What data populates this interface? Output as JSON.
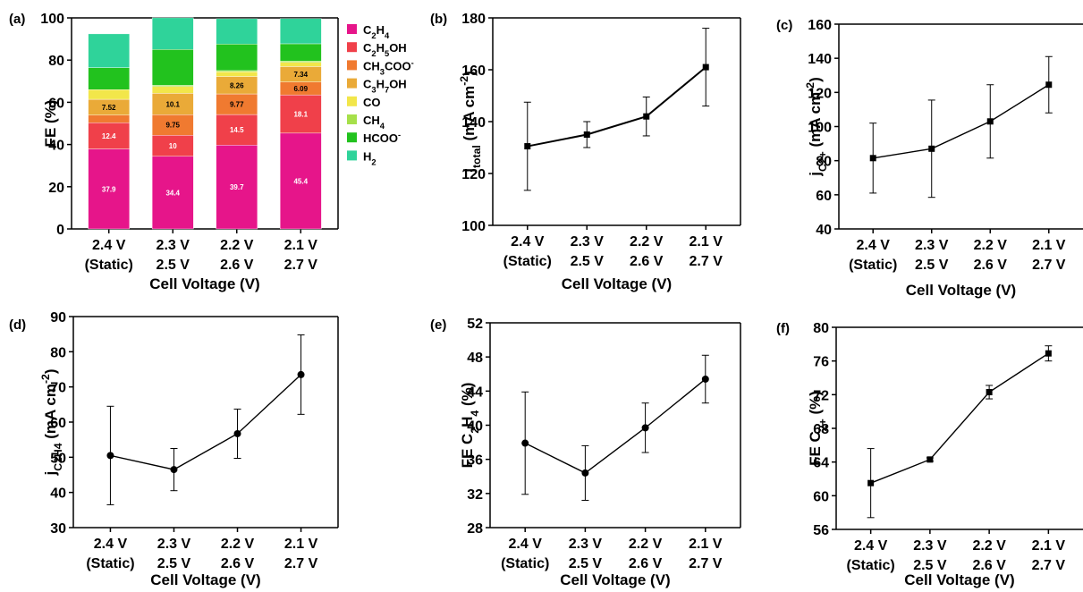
{
  "figure": {
    "categories_line1": [
      "2.4 V",
      "2.3 V",
      "2.2 V",
      "2.1 V"
    ],
    "categories_line2": [
      "(Static)",
      "2.5 V",
      "2.6 V",
      "2.7 V"
    ],
    "xlabel": "Cell Voltage (V)"
  },
  "chart_data": [
    {
      "id": "a",
      "panel_label": "(a)",
      "type": "bar",
      "stacked": true,
      "categories": [
        "2.4 V (Static)",
        "2.3 V 2.5 V",
        "2.2 V 2.6 V",
        "2.1 V 2.7 V"
      ],
      "ylabel": "FE (%)",
      "xlabel": "Cell Voltage (V)",
      "ylim": [
        0,
        100
      ],
      "yticks": [
        0,
        20,
        40,
        60,
        80,
        100
      ],
      "legend_position": "right",
      "series": [
        {
          "name": "C2H4",
          "name_main": "C",
          "name_sub": "2",
          "name_tail": "H",
          "name_sub2": "4",
          "color": "#e6158a",
          "values": [
            37.9,
            34.4,
            39.7,
            45.4
          ],
          "labels": [
            "37.9",
            "34.4",
            "39.7",
            "45.4"
          ],
          "label_color": "#ffffff"
        },
        {
          "name": "C2H5OH",
          "color": "#f0404a",
          "values": [
            12.4,
            10,
            14.5,
            18.1
          ],
          "labels": [
            "12.4",
            "10",
            "14.5",
            "18.1"
          ],
          "label_color": "#ffffff"
        },
        {
          "name": "CH3COO-",
          "color": "#f07a30",
          "values": [
            3.6,
            9.75,
            9.77,
            6.09
          ],
          "labels": [
            "",
            "9.75",
            "9.77",
            "6.09"
          ],
          "label_color": "#000000"
        },
        {
          "name": "C3H7OH",
          "color": "#eaaa38",
          "values": [
            7.52,
            10.1,
            8.26,
            7.34
          ],
          "labels": [
            "7.52",
            "10.1",
            "8.26",
            "7.34"
          ],
          "label_color": "#000000"
        },
        {
          "name": "CO",
          "color": "#f2e64a",
          "values": [
            4.6,
            3.2,
            2.2,
            2.0
          ],
          "labels": [
            "",
            "",
            "",
            ""
          ],
          "label_color": "#000000"
        },
        {
          "name": "CH4",
          "color": "#a6e04a",
          "values": [
            0,
            0.6,
            0.6,
            0.6
          ],
          "labels": [
            "",
            "",
            "",
            ""
          ],
          "label_color": "#000000"
        },
        {
          "name": "HCOO-",
          "color": "#22c21e",
          "values": [
            10.4,
            17.0,
            12.6,
            8.2
          ],
          "labels": [
            "",
            "",
            "",
            ""
          ],
          "label_color": "#000000"
        },
        {
          "name": "H2",
          "color": "#2fd39a",
          "values": [
            16.0,
            15.0,
            12.0,
            12.0
          ],
          "labels": [
            "",
            "",
            "",
            ""
          ],
          "label_color": "#000000"
        }
      ]
    },
    {
      "id": "b",
      "panel_label": "(b)",
      "type": "line",
      "marker": "square",
      "ylabel": "j_total (mA cm^-2)",
      "xlabel": "Cell Voltage (V)",
      "ylim": [
        100,
        180
      ],
      "yticks": [
        100,
        120,
        140,
        160,
        180
      ],
      "values": [
        130.5,
        135,
        142,
        161
      ],
      "errors": [
        17,
        5,
        7.5,
        15
      ]
    },
    {
      "id": "c",
      "panel_label": "(c)",
      "type": "line",
      "marker": "square",
      "ylabel": "j_C2+ (mA cm^-2)",
      "xlabel": "Cell Voltage (V)",
      "ylim": [
        40,
        160
      ],
      "yticks": [
        40,
        60,
        80,
        100,
        120,
        140,
        160
      ],
      "values": [
        81.5,
        87,
        103,
        124.5
      ],
      "errors": [
        20.5,
        28.5,
        21.5,
        16.5
      ]
    },
    {
      "id": "d",
      "panel_label": "(d)",
      "type": "line",
      "marker": "circle",
      "ylabel": "j_C2H4 (mA cm^-2)",
      "xlabel": "Cell Voltage (V)",
      "ylim": [
        30,
        90
      ],
      "yticks": [
        30,
        40,
        50,
        60,
        70,
        80,
        90
      ],
      "values": [
        50.5,
        46.5,
        56.7,
        73.5
      ],
      "errors": [
        14,
        6,
        7,
        11.3
      ]
    },
    {
      "id": "e",
      "panel_label": "(e)",
      "type": "line",
      "marker": "circle",
      "ylabel": "FE C2H4 (%)",
      "xlabel": "Cell Voltage (V)",
      "ylim": [
        28,
        52
      ],
      "yticks": [
        28,
        32,
        36,
        40,
        44,
        48,
        52
      ],
      "values": [
        37.9,
        34.4,
        39.7,
        45.4
      ],
      "errors": [
        6,
        3.2,
        2.9,
        2.8
      ]
    },
    {
      "id": "f",
      "panel_label": "(f)",
      "type": "line",
      "marker": "square",
      "ylabel": "FE C2+ (%)",
      "xlabel": "Cell Voltage (V)",
      "ylim": [
        56,
        80
      ],
      "yticks": [
        56,
        60,
        64,
        68,
        72,
        76,
        80
      ],
      "values": [
        61.5,
        64.3,
        72.3,
        76.9
      ],
      "errors": [
        4.1,
        0.2,
        0.8,
        0.9
      ]
    }
  ]
}
